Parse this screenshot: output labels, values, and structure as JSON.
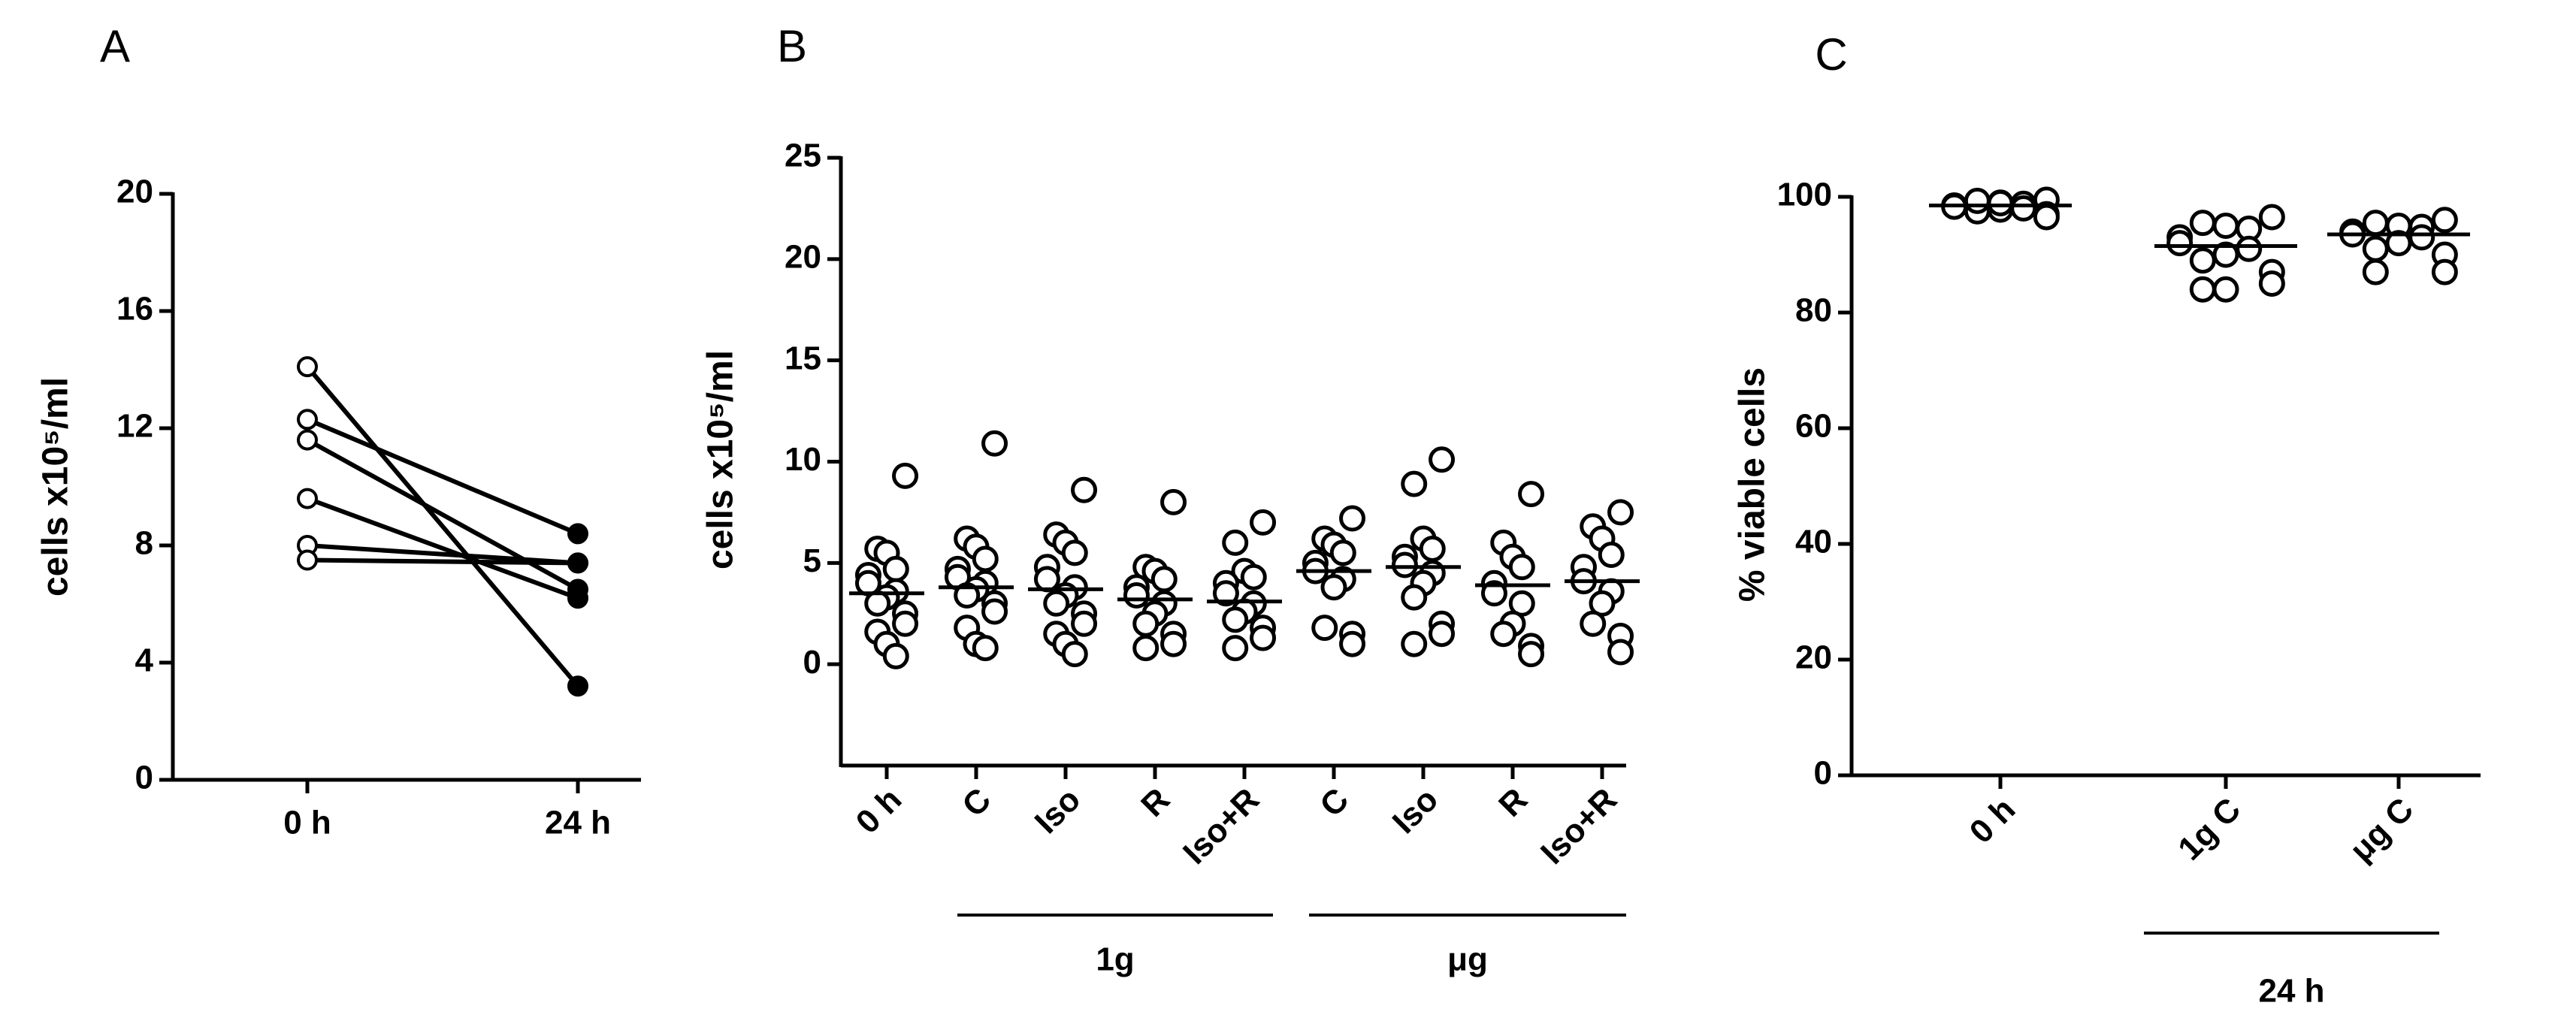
{
  "chart_data": [
    {
      "type": "paired",
      "panel": "A",
      "y_label": "cells x10⁵/ml",
      "categories": [
        "0 h",
        "24 h"
      ],
      "series": [
        {
          "values": [
            14.1,
            3.2
          ]
        },
        {
          "values": [
            12.3,
            8.4
          ]
        },
        {
          "values": [
            11.6,
            6.5
          ]
        },
        {
          "values": [
            9.6,
            6.2
          ]
        },
        {
          "values": [
            8.0,
            7.4
          ]
        },
        {
          "values": [
            7.5,
            7.4
          ]
        }
      ],
      "ylim": [
        0,
        20
      ],
      "yticks": [
        0,
        4,
        8,
        12,
        16,
        20
      ],
      "color": "#000000"
    },
    {
      "type": "strip",
      "panel": "B",
      "y_label": "cells x10⁵/ml",
      "categories": [
        "0 h",
        "C",
        "Iso",
        "R",
        "Iso+R",
        "C",
        "Iso",
        "R",
        "Iso+R"
      ],
      "values": [
        [
          9.3,
          5.7,
          5.5,
          4.7,
          4.4,
          4.0,
          3.6,
          3.3,
          3.0,
          2.5,
          2.0,
          1.6,
          1.0,
          0.4
        ],
        [
          10.9,
          6.2,
          5.8,
          5.2,
          4.7,
          4.3,
          4.0,
          3.7,
          3.4,
          3.0,
          2.6,
          1.8,
          1.0,
          0.8
        ],
        [
          8.6,
          6.4,
          6.0,
          5.5,
          4.8,
          4.2,
          3.8,
          3.4,
          3.0,
          2.5,
          2.0,
          1.5,
          1.0,
          0.5
        ],
        [
          8.0,
          4.8,
          4.6,
          4.2,
          3.8,
          3.4,
          3.0,
          2.5,
          2.0,
          1.5,
          1.0,
          0.8
        ],
        [
          7.0,
          6.0,
          4.6,
          4.3,
          4.0,
          3.5,
          3.0,
          2.6,
          2.2,
          1.8,
          1.3,
          0.8
        ],
        [
          7.2,
          6.2,
          5.9,
          5.5,
          5.0,
          4.6,
          4.2,
          3.8,
          1.8,
          1.5,
          1.0
        ],
        [
          10.1,
          8.9,
          6.2,
          5.7,
          5.3,
          4.9,
          4.5,
          4.0,
          3.3,
          2.0,
          1.5,
          1.0
        ],
        [
          8.4,
          6.0,
          5.3,
          4.8,
          4.0,
          3.5,
          3.0,
          2.0,
          1.5,
          0.9,
          0.5
        ],
        [
          7.5,
          6.8,
          6.2,
          5.4,
          4.8,
          4.1,
          3.6,
          3.0,
          2.0,
          1.4,
          0.6
        ]
      ],
      "means": [
        3.5,
        3.8,
        3.7,
        3.2,
        3.1,
        4.6,
        4.8,
        3.9,
        4.1
      ],
      "groups": [
        {
          "label": "1g"
        },
        {
          "label": "μg"
        }
      ],
      "ylim": [
        -5,
        25
      ],
      "yticks": [
        0,
        5,
        10,
        15,
        20,
        25
      ],
      "color": "#000000"
    },
    {
      "type": "strip",
      "panel": "C",
      "y_label": "% viable cells",
      "categories": [
        "0 h",
        "1g C",
        "μg C"
      ],
      "values": [
        [
          99.5,
          99.2,
          99.0,
          98.8,
          98.5,
          98.3,
          98.0,
          97.8,
          97.5,
          97.0,
          96.5,
          99.3,
          98.9
        ],
        [
          96.5,
          95.5,
          95.0,
          94.5,
          93.0,
          92.0,
          91.0,
          90.0,
          89.0,
          87.0,
          85.0,
          84.0,
          84.0
        ],
        [
          96.0,
          95.5,
          95.0,
          94.8,
          94.0,
          93.5,
          93.0,
          92.0,
          91.0,
          90.0,
          87.0,
          87.0
        ]
      ],
      "means": [
        98.5,
        91.5,
        93.5
      ],
      "groups": [
        {
          "label": "24 h"
        }
      ],
      "ylim": [
        0,
        100
      ],
      "yticks": [
        0,
        20,
        40,
        60,
        80,
        100
      ],
      "color": "#000000"
    }
  ]
}
